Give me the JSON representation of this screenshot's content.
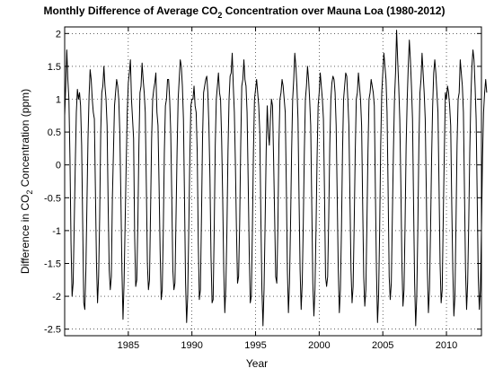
{
  "chart_data": {
    "type": "line",
    "title_main": "Monthly Difference of Average CO",
    "title_sub": "2",
    "title_rest": " Concentration over Mauna Loa (1980-2012)",
    "xlabel": "Year",
    "ylabel_pre": "Difference in CO",
    "ylabel_sub": "2",
    "ylabel_post": " Concentration (ppm)",
    "xlim": [
      1980,
      2012.75
    ],
    "ylim": [
      -2.6,
      2.1
    ],
    "xticks": [
      1985,
      1990,
      1995,
      2000,
      2005,
      2010
    ],
    "yticks": [
      -2.5,
      -2,
      -1.5,
      -1,
      -0.5,
      0,
      0.5,
      1,
      1.5,
      2
    ],
    "grid": true,
    "line_color": "#000000",
    "series": [
      {
        "start_year": 1980,
        "values": [
          0.75,
          1.2,
          1.75,
          1.3,
          1.0,
          0.1,
          -1.2,
          -2.0,
          -1.8,
          -0.9,
          0.0,
          0.8,
          1.15,
          1.0,
          1.1,
          0.9,
          0.3,
          -0.9,
          -2.1,
          -2.2,
          -1.6,
          -0.6,
          0.4,
          1.05,
          1.45,
          1.3,
          1.0,
          0.8,
          0.7,
          -0.4,
          -1.5,
          -2.1,
          -1.7,
          -0.8,
          0.5,
          1.1,
          1.2,
          1.5,
          1.2,
          1.0,
          0.6,
          -0.6,
          -1.6,
          -1.9,
          -1.7,
          -0.5,
          0.2,
          0.9,
          1.1,
          1.3,
          1.2,
          1.0,
          0.5,
          -0.5,
          -1.6,
          -2.35,
          -1.8,
          -0.9,
          0.0,
          0.8,
          1.25,
          1.4,
          1.6,
          1.0,
          0.7,
          0.4,
          -1.1,
          -1.85,
          -1.75,
          -0.9,
          0.3,
          1.1,
          1.2,
          1.55,
          1.3,
          1.1,
          0.8,
          -0.3,
          -1.5,
          -1.9,
          -1.75,
          -0.7,
          0.4,
          1.0,
          1.15,
          1.25,
          1.4,
          0.8,
          0.6,
          -0.3,
          -1.3,
          -2.05,
          -1.9,
          -1.0,
          0.2,
          0.9,
          1.0,
          1.3,
          1.3,
          1.0,
          0.5,
          -0.5,
          -1.6,
          -1.9,
          -1.8,
          -0.8,
          0.2,
          1.0,
          1.3,
          1.6,
          1.5,
          1.2,
          0.7,
          -0.5,
          -1.8,
          -2.4,
          -2.0,
          -1.0,
          0.1,
          0.9,
          1.0,
          1.0,
          1.2,
          0.9,
          0.8,
          0.2,
          -1.2,
          -2.05,
          -1.9,
          -0.8,
          0.4,
          1.1,
          1.2,
          1.3,
          1.35,
          1.1,
          0.6,
          -0.2,
          -1.4,
          -2.1,
          -2.05,
          -1.0,
          0.3,
          1.0,
          1.2,
          1.4,
          1.1,
          1.0,
          0.4,
          -0.5,
          -1.6,
          -2.25,
          -1.85,
          -1.0,
          0.2,
          1.0,
          1.35,
          1.4,
          1.7,
          1.2,
          0.8,
          0.0,
          -1.0,
          -1.8,
          -1.7,
          -0.9,
          0.3,
          1.2,
          1.3,
          1.6,
          1.3,
          1.2,
          0.8,
          -0.2,
          -1.3,
          -2.1,
          -2.0,
          -1.0,
          0.2,
          1.0,
          1.15,
          1.3,
          1.1,
          0.9,
          0.5,
          -0.8,
          -1.9,
          -2.45,
          -1.9,
          -0.9,
          0.2,
          0.9,
          0.5,
          0.3,
          0.7,
          1.0,
          0.9,
          0.1,
          -0.8,
          -1.7,
          -1.8,
          -1.0,
          0.3,
          1.0,
          1.1,
          1.3,
          1.2,
          1.0,
          0.8,
          -0.3,
          -1.6,
          -2.25,
          -1.8,
          -0.9,
          0.2,
          1.0,
          1.3,
          1.7,
          1.5,
          1.2,
          0.7,
          -0.5,
          -1.6,
          -2.2,
          -1.8,
          -0.9,
          0.2,
          1.0,
          1.2,
          1.5,
          1.3,
          1.0,
          0.6,
          -0.6,
          -1.8,
          -2.3,
          -1.9,
          -1.0,
          0.1,
          0.9,
          1.1,
          1.4,
          1.2,
          1.0,
          0.7,
          -0.4,
          -1.7,
          -1.85,
          -1.7,
          -0.8,
          0.3,
          1.0,
          1.25,
          1.35,
          1.3,
          1.1,
          0.6,
          -0.5,
          -1.6,
          -2.25,
          -1.9,
          -1.0,
          0.2,
          1.0,
          1.2,
          1.4,
          1.35,
          1.0,
          0.6,
          -0.5,
          -1.6,
          -2.1,
          -1.85,
          -0.9,
          0.2,
          1.0,
          1.1,
          1.4,
          1.2,
          1.0,
          0.6,
          -0.6,
          -1.7,
          -2.15,
          -1.9,
          -0.9,
          0.2,
          1.0,
          1.1,
          1.3,
          1.2,
          1.1,
          0.9,
          -0.4,
          -1.6,
          -2.4,
          -2.0,
          -1.0,
          0.3,
          1.1,
          1.4,
          1.7,
          1.5,
          1.3,
          0.8,
          -0.4,
          -1.7,
          -2.05,
          -1.8,
          -0.8,
          0.2,
          1.0,
          1.4,
          2.05,
          1.6,
          1.2,
          0.7,
          -0.3,
          -1.5,
          -2.15,
          -1.9,
          -0.9,
          0.3,
          1.0,
          1.5,
          1.9,
          1.6,
          1.2,
          0.7,
          -0.6,
          -1.8,
          -2.45,
          -2.0,
          -1.0,
          0.3,
          1.1,
          1.3,
          1.7,
          1.4,
          1.1,
          0.7,
          -0.4,
          -1.6,
          -2.25,
          -1.9,
          -1.0,
          0.1,
          0.9,
          1.4,
          1.6,
          1.4,
          1.1,
          0.8,
          -0.3,
          -1.5,
          -2.1,
          -1.9,
          -0.8,
          0.2,
          1.1,
          1.0,
          1.2,
          1.1,
          0.9,
          0.6,
          -0.6,
          -1.6,
          -2.3,
          -2.0,
          -0.9,
          0.3,
          1.0,
          1.1,
          1.6,
          1.4,
          1.2,
          0.8,
          -0.4,
          -1.6,
          -2.2,
          -1.8,
          -0.9,
          0.2,
          1.0,
          1.5,
          1.75,
          1.6,
          1.2,
          0.7,
          -0.5,
          -1.7,
          -2.2,
          -1.9,
          -1.0,
          0.1,
          0.8,
          1.1,
          1.3,
          1.1
        ]
      }
    ]
  }
}
